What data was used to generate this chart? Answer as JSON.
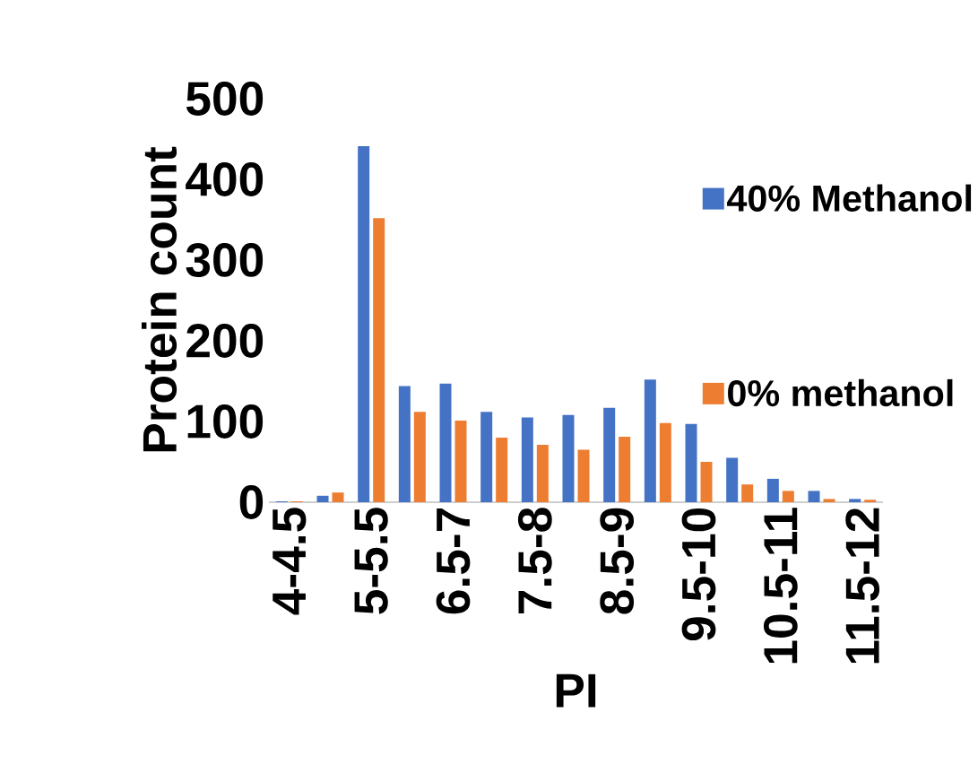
{
  "chart_data": {
    "type": "bar",
    "xlabel": "PI",
    "ylabel": "Protein count",
    "categories": [
      "4-4.5",
      null,
      "5-5.5",
      null,
      "6.5-7",
      null,
      "7.5-8",
      null,
      "8.5-9",
      null,
      "9.5-10",
      null,
      "10.5-11",
      null,
      "11.5-12"
    ],
    "series": [
      {
        "name": "40% Methanol",
        "color": "#4472c4",
        "values": [
          1,
          8,
          441,
          144,
          147,
          112,
          105,
          108,
          117,
          152,
          97,
          55,
          29,
          14,
          4
        ]
      },
      {
        "name": "0% methanol",
        "color": "#ed7d31",
        "values": [
          1,
          12,
          352,
          112,
          101,
          80,
          71,
          65,
          81,
          98,
          50,
          22,
          14,
          4,
          3
        ]
      }
    ],
    "ylim": [
      0,
      500
    ],
    "yticks": [
      0,
      100,
      200,
      300,
      400,
      500
    ],
    "legend": "right"
  }
}
